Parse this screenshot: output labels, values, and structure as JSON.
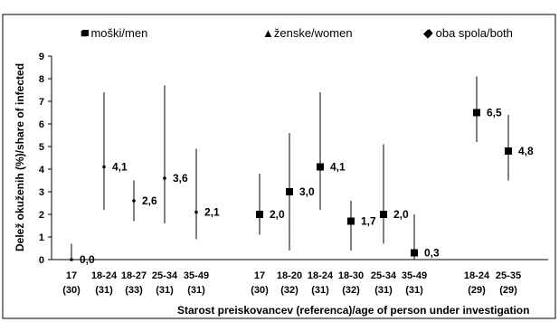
{
  "chart_data": {
    "type": "scatter",
    "title": "",
    "xlabel": "Starost preiskovancev (referenca)/age of person under investigation",
    "ylabel": "Delež okuženih (%)/share of infected",
    "ylim": [
      0,
      9
    ],
    "yticks": [
      0,
      1,
      2,
      3,
      4,
      5,
      6,
      7,
      8,
      9
    ],
    "grid": false,
    "legend_position": "top",
    "categories": [
      [
        "17",
        "(30)"
      ],
      [
        "18-24",
        "(31)"
      ],
      [
        "18-27",
        "(33)"
      ],
      [
        "25-34",
        "(31)"
      ],
      [
        "35-49",
        "(31)"
      ],
      [
        "17",
        "(30)"
      ],
      [
        "18-20",
        "(32)"
      ],
      [
        "18-24",
        "(31)"
      ],
      [
        "18-30",
        "(32)"
      ],
      [
        "25-34",
        "(31)"
      ],
      [
        "35-49",
        "(31)"
      ],
      [
        "18-24",
        "(29)"
      ],
      [
        "25-35",
        "(29)"
      ]
    ],
    "series": [
      {
        "name": "▲ženske/women",
        "marker": "dot",
        "points": [
          {
            "cat": 0,
            "value": 0.0,
            "low": 0.0,
            "high": 0.7,
            "label": "0,0"
          },
          {
            "cat": 1,
            "value": 4.1,
            "low": 2.2,
            "high": 7.4,
            "label": "4,1"
          },
          {
            "cat": 2,
            "value": 2.6,
            "low": 1.7,
            "high": 3.5,
            "label": "2,6"
          },
          {
            "cat": 3,
            "value": 3.6,
            "low": 1.6,
            "high": 7.7,
            "label": "3,6"
          },
          {
            "cat": 4,
            "value": 2.1,
            "low": 0.9,
            "high": 4.9,
            "label": "2,1"
          }
        ]
      },
      {
        "name": "■ moški/men",
        "marker": "square",
        "points": [
          {
            "cat": 5,
            "value": 2.0,
            "low": 1.1,
            "high": 3.8,
            "label": "2,0"
          },
          {
            "cat": 6,
            "value": 3.0,
            "low": 0.4,
            "high": 5.6,
            "label": "3,0"
          },
          {
            "cat": 7,
            "value": 4.1,
            "low": 2.2,
            "high": 7.4,
            "label": "4,1"
          },
          {
            "cat": 8,
            "value": 1.7,
            "low": 0.4,
            "high": 2.6,
            "label": "1,7"
          },
          {
            "cat": 9,
            "value": 2.0,
            "low": 0.7,
            "high": 5.1,
            "label": "2,0"
          },
          {
            "cat": 10,
            "value": 0.3,
            "low": 0.0,
            "high": 2.0,
            "label": "0,3"
          }
        ]
      },
      {
        "name": "◆ oba spola/both",
        "marker": "square",
        "points": [
          {
            "cat": 11,
            "value": 6.5,
            "low": 5.2,
            "high": 8.1,
            "label": "6,5"
          },
          {
            "cat": 12,
            "value": 4.8,
            "low": 3.5,
            "high": 6.4,
            "label": "4,8"
          }
        ]
      }
    ]
  }
}
